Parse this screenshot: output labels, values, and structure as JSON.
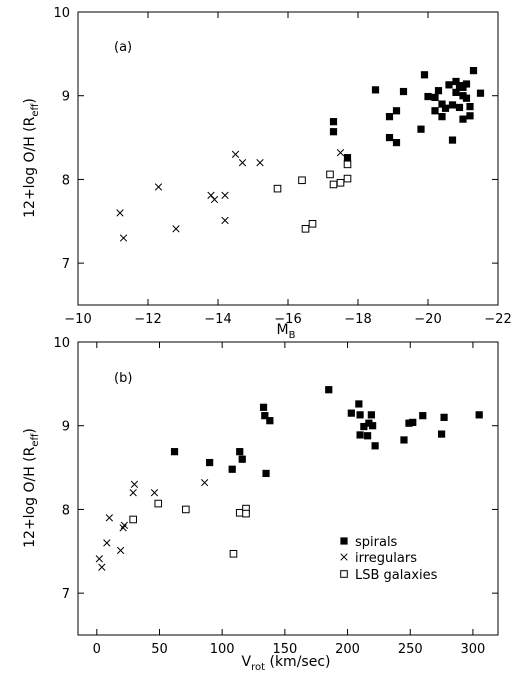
{
  "chart_data": [
    {
      "type": "scatter",
      "panel_label": "(a)",
      "xlabel_main": "M",
      "xlabel_sub": "B",
      "ylabel": "12+log O/H (R",
      "ylabel_sub": "eff",
      "ylabel_close": ")",
      "xlim": [
        -10,
        -22
      ],
      "ylim": [
        6.5,
        10
      ],
      "x_ticks": [
        -10,
        -12,
        -14,
        -16,
        -18,
        -20,
        -22
      ],
      "x_tick_labels": [
        "−10",
        "−12",
        "−14",
        "−16",
        "−18",
        "−20",
        "−22"
      ],
      "y_ticks": [
        7,
        8,
        9,
        10
      ],
      "y_tick_labels": [
        "7",
        "8",
        "9",
        "10"
      ],
      "grid": false,
      "series": [
        {
          "name": "spirals",
          "marker": "filled-square",
          "points": [
            [
              -17.3,
              8.69
            ],
            [
              -17.3,
              8.57
            ],
            [
              -17.7,
              8.26
            ],
            [
              -18.5,
              9.07
            ],
            [
              -18.9,
              8.75
            ],
            [
              -18.9,
              8.5
            ],
            [
              -19.1,
              8.82
            ],
            [
              -19.1,
              8.44
            ],
            [
              -19.3,
              9.05
            ],
            [
              -19.8,
              8.6
            ],
            [
              -19.9,
              9.25
            ],
            [
              -20.0,
              8.99
            ],
            [
              -20.2,
              8.82
            ],
            [
              -20.2,
              8.98
            ],
            [
              -20.3,
              9.06
            ],
            [
              -20.4,
              8.75
            ],
            [
              -20.4,
              8.9
            ],
            [
              -20.5,
              8.85
            ],
            [
              -20.6,
              9.13
            ],
            [
              -20.7,
              8.47
            ],
            [
              -20.7,
              8.89
            ],
            [
              -20.8,
              9.17
            ],
            [
              -20.8,
              9.04
            ],
            [
              -20.9,
              9.12
            ],
            [
              -20.9,
              8.86
            ],
            [
              -21.0,
              9.1
            ],
            [
              -21.0,
              9.0
            ],
            [
              -21.0,
              8.72
            ],
            [
              -21.1,
              8.97
            ],
            [
              -21.1,
              9.14
            ],
            [
              -21.2,
              8.76
            ],
            [
              -21.2,
              8.87
            ],
            [
              -21.3,
              9.3
            ],
            [
              -21.5,
              9.03
            ]
          ]
        },
        {
          "name": "irregulars",
          "marker": "x",
          "points": [
            [
              -11.2,
              7.6
            ],
            [
              -11.3,
              7.3
            ],
            [
              -12.3,
              7.91
            ],
            [
              -12.8,
              7.41
            ],
            [
              -13.8,
              7.81
            ],
            [
              -13.9,
              7.76
            ],
            [
              -14.2,
              7.81
            ],
            [
              -14.2,
              7.51
            ],
            [
              -14.5,
              8.3
            ],
            [
              -14.7,
              8.2
            ],
            [
              -15.2,
              8.2
            ],
            [
              -17.5,
              8.32
            ]
          ]
        },
        {
          "name": "LSB galaxies",
          "marker": "open-square",
          "points": [
            [
              -15.7,
              7.89
            ],
            [
              -16.4,
              7.99
            ],
            [
              -16.5,
              7.41
            ],
            [
              -16.7,
              7.47
            ],
            [
              -17.2,
              8.06
            ],
            [
              -17.3,
              7.94
            ],
            [
              -17.5,
              7.96
            ],
            [
              -17.7,
              8.01
            ],
            [
              -17.7,
              8.18
            ]
          ]
        }
      ]
    },
    {
      "type": "scatter",
      "panel_label": "(b)",
      "xlabel_main": "V",
      "xlabel_sub": "rot",
      "xlabel_rest": " (km/sec)",
      "ylabel": "12+log O/H (R",
      "ylabel_sub": "eff",
      "ylabel_close": ")",
      "xlim": [
        -15,
        320
      ],
      "ylim": [
        6.5,
        10
      ],
      "x_ticks": [
        0,
        50,
        100,
        150,
        200,
        250,
        300
      ],
      "x_tick_labels": [
        "0",
        "50",
        "100",
        "150",
        "200",
        "250",
        "300"
      ],
      "y_ticks": [
        7,
        8,
        9,
        10
      ],
      "y_tick_labels": [
        "7",
        "8",
        "9",
        "10"
      ],
      "grid": false,
      "legend": {
        "placement": "bottom-right",
        "entries": [
          {
            "label": "spirals",
            "marker": "filled-square"
          },
          {
            "label": "irregulars",
            "marker": "x"
          },
          {
            "label": "LSB galaxies",
            "marker": "open-square"
          }
        ]
      },
      "series": [
        {
          "name": "spirals",
          "marker": "filled-square",
          "points": [
            [
              62,
              8.69
            ],
            [
              90,
              8.56
            ],
            [
              108,
              8.48
            ],
            [
              114,
              8.69
            ],
            [
              116,
              8.6
            ],
            [
              133,
              9.22
            ],
            [
              134,
              9.12
            ],
            [
              135,
              8.43
            ],
            [
              138,
              9.06
            ],
            [
              185,
              9.43
            ],
            [
              203,
              9.15
            ],
            [
              209,
              9.26
            ],
            [
              210,
              9.13
            ],
            [
              210,
              8.89
            ],
            [
              213,
              8.99
            ],
            [
              216,
              8.88
            ],
            [
              217,
              9.03
            ],
            [
              219,
              9.13
            ],
            [
              220,
              9.0
            ],
            [
              222,
              8.76
            ],
            [
              245,
              8.83
            ],
            [
              249,
              9.03
            ],
            [
              252,
              9.04
            ],
            [
              260,
              9.12
            ],
            [
              275,
              8.9
            ],
            [
              277,
              9.1
            ],
            [
              305,
              9.13
            ]
          ]
        },
        {
          "name": "irregulars",
          "marker": "x",
          "points": [
            [
              2,
              7.41
            ],
            [
              4,
              7.31
            ],
            [
              8,
              7.6
            ],
            [
              10,
              7.9
            ],
            [
              19,
              7.51
            ],
            [
              21,
              7.78
            ],
            [
              22,
              7.81
            ],
            [
              29,
              8.2
            ],
            [
              30,
              8.3
            ],
            [
              46,
              8.2
            ],
            [
              86,
              8.32
            ]
          ]
        },
        {
          "name": "LSB galaxies",
          "marker": "open-square",
          "points": [
            [
              29,
              7.88
            ],
            [
              49,
              8.07
            ],
            [
              71,
              8.0
            ],
            [
              109,
              7.47
            ],
            [
              114,
              7.96
            ],
            [
              119,
              8.01
            ],
            [
              119,
              7.95
            ]
          ]
        }
      ]
    }
  ]
}
